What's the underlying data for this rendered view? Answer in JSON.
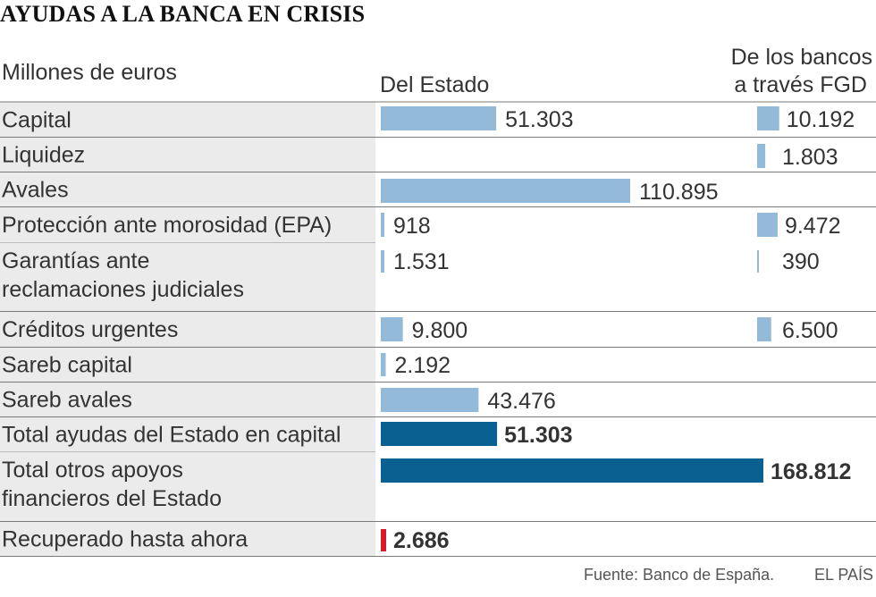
{
  "title": "AYUDAS A LA BANCA EN CRISIS",
  "units_label": "Millones de euros",
  "column_headers": {
    "estado": "Del Estado",
    "fgd_line1": "De los bancos",
    "fgd_line2": "a través FGD"
  },
  "source": "Fuente: Banco de España.",
  "brand": "EL PAÍS",
  "colors": {
    "light_bar": "#94bad9",
    "dark_bar": "#0a6090",
    "red_bar": "#d7192a",
    "label_panel": "#ebebeb",
    "separator": "#7a7a7a"
  },
  "chart_data": {
    "type": "bar",
    "orientation": "horizontal",
    "series": [
      {
        "name": "Del Estado"
      },
      {
        "name": "De los bancos a través FGD"
      }
    ],
    "rows": [
      {
        "label": [
          "Capital"
        ],
        "estado": 51303,
        "estado_label": "51.303",
        "fgd": 10192,
        "fgd_label": "10.192",
        "style": "light"
      },
      {
        "label": [
          "Liquidez"
        ],
        "estado": null,
        "estado_label": "",
        "fgd": 1803,
        "fgd_label": "1.803",
        "style": "light"
      },
      {
        "label": [
          "Avales"
        ],
        "estado": 110895,
        "estado_label": "110.895",
        "fgd": null,
        "fgd_label": "",
        "style": "light"
      },
      {
        "label": [
          "Protección ante morosidad (EPA)"
        ],
        "estado": 918,
        "estado_label": "918",
        "fgd": 9472,
        "fgd_label": "9.472",
        "style": "light"
      },
      {
        "label": [
          "Garantías ante",
          "reclamaciones judiciales"
        ],
        "estado": 1531,
        "estado_label": "1.531",
        "fgd": 390,
        "fgd_label": "390",
        "style": "light"
      },
      {
        "label": [
          "Créditos urgentes"
        ],
        "estado": 9800,
        "estado_label": "9.800",
        "fgd": 6500,
        "fgd_label": "6.500",
        "style": "light"
      },
      {
        "label": [
          "Sareb capital"
        ],
        "estado": 2192,
        "estado_label": "2.192",
        "fgd": null,
        "fgd_label": "",
        "style": "light"
      },
      {
        "label": [
          "Sareb avales"
        ],
        "estado": 43476,
        "estado_label": "43.476",
        "fgd": null,
        "fgd_label": "",
        "style": "light"
      },
      {
        "label": [
          "Total ayudas del Estado en capital"
        ],
        "estado": 51303,
        "estado_label": "51.303",
        "fgd": null,
        "fgd_label": "",
        "style": "total"
      },
      {
        "label": [
          "Total otros apoyos",
          "financieros del Estado"
        ],
        "estado": 168812,
        "estado_label": "168.812",
        "fgd": null,
        "fgd_label": "",
        "style": "total"
      },
      {
        "label": [
          "Recuperado hasta ahora"
        ],
        "estado": 2686,
        "estado_label": "2.686",
        "fgd": null,
        "fgd_label": "",
        "style": "recovered"
      }
    ]
  }
}
